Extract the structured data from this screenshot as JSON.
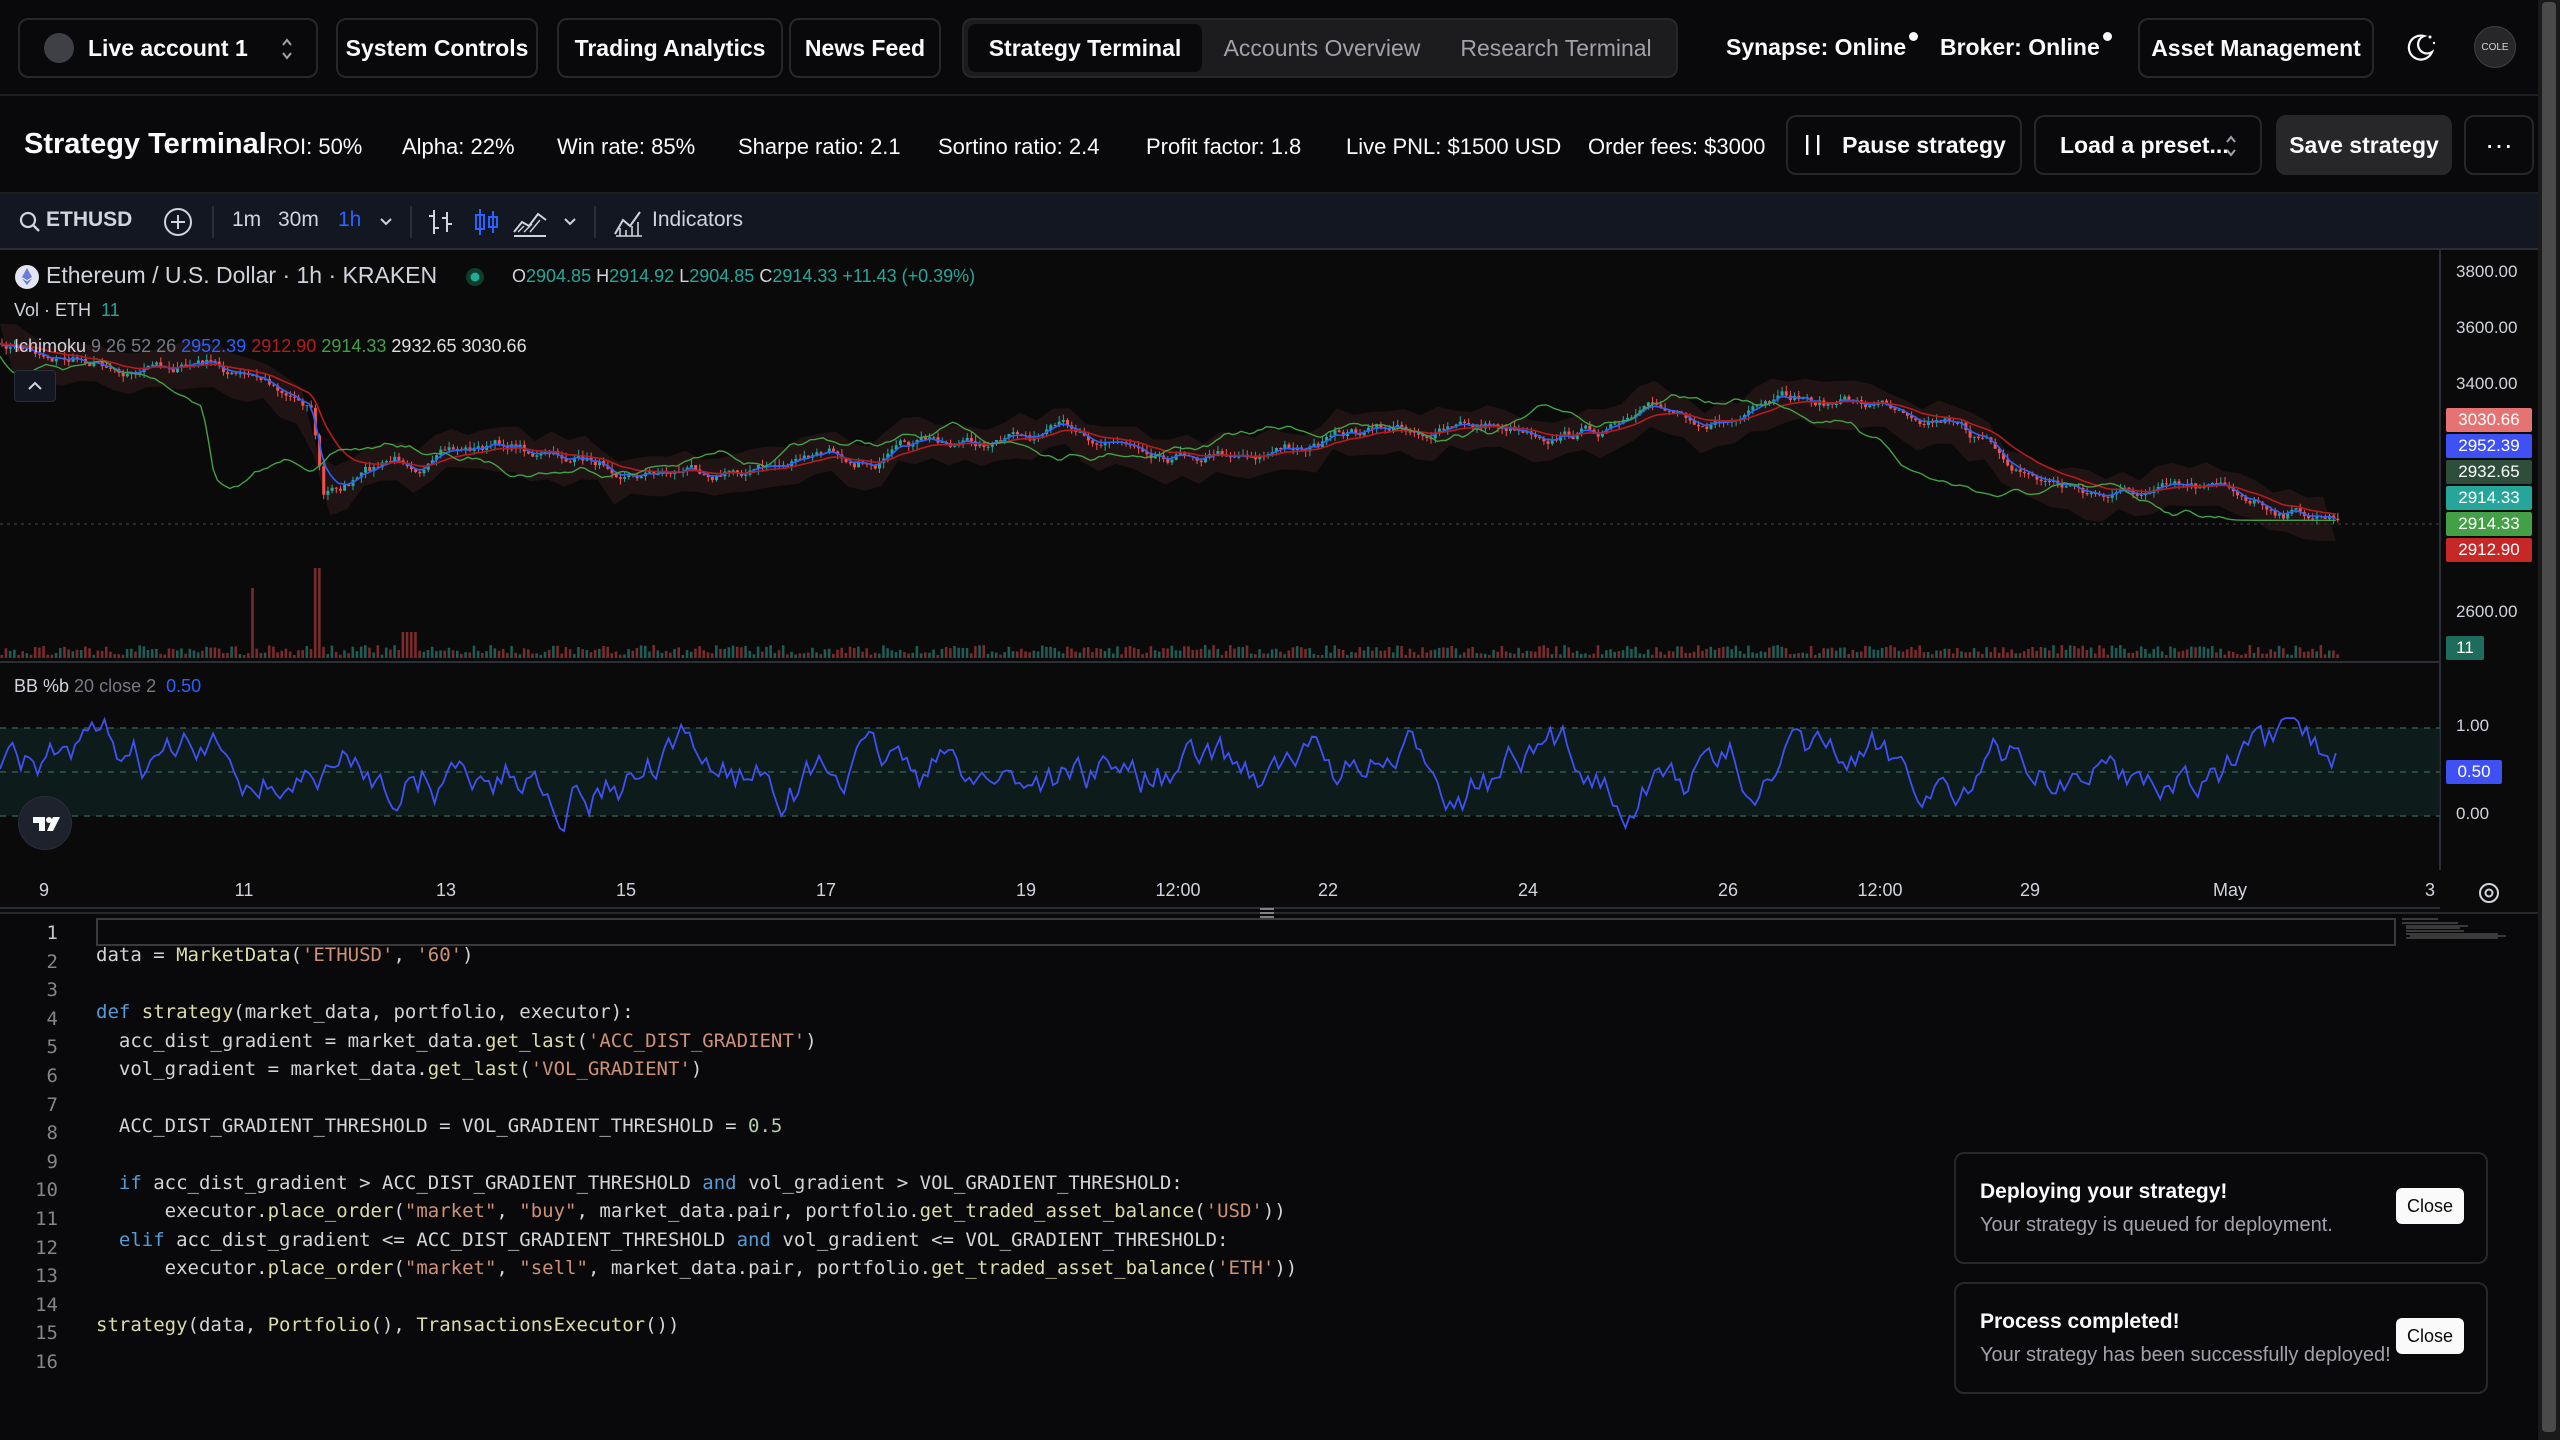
{
  "topnav": {
    "account": "Live account 1",
    "links": [
      "System Controls",
      "Trading Analytics",
      "News Feed"
    ],
    "tabs": [
      "Strategy Terminal",
      "Accounts Overview",
      "Research Terminal"
    ],
    "synapse": "Synapse: Online",
    "broker": "Broker: Online",
    "asset_mgmt": "Asset Management",
    "avatar": "COLE"
  },
  "header": {
    "title": "Strategy Terminal",
    "metrics": [
      "ROI: 50%",
      "Alpha: 22%",
      "Win rate: 85%",
      "Sharpe ratio: 2.1",
      "Sortino ratio: 2.4",
      "Profit factor: 1.8",
      "Live PNL: $1500 USD",
      "Order fees: $3000"
    ],
    "pause": "Pause strategy",
    "preset": "Load a preset...",
    "save": "Save strategy",
    "more": "···"
  },
  "toolbar": {
    "symbol": "ETHUSD",
    "intervals": [
      "1m",
      "30m",
      "1h"
    ],
    "indicators": "Indicators"
  },
  "chart": {
    "title": "Ethereum / U.S. Dollar · 1h · KRAKEN",
    "ohlc": {
      "o_label": "O",
      "o": "2904.85",
      "h_label": "H",
      "h": "2914.92",
      "l_label": "L",
      "l": "2904.85",
      "c_label": "C",
      "c": "2914.33",
      "chg": "+11.43 (+0.39%)"
    },
    "vol_label": "Vol · ETH",
    "vol_value": "11",
    "ichimoku_label": "Ichimoku",
    "ichimoku_params": "9 26 52 26",
    "ichimoku_vals": [
      "2952.39",
      "2912.90",
      "2914.33",
      "2932.65",
      "3030.66"
    ],
    "y_ticks": [
      "3800.00",
      "3600.00",
      "3400.00",
      "2600.00"
    ],
    "price_tags": [
      {
        "label": "3030.66",
        "color": "#e57373"
      },
      {
        "label": "2952.39",
        "color": "#3f51f5"
      },
      {
        "label": "2932.65",
        "color": "#2e4d3a"
      },
      {
        "label": "2914.33",
        "color": "#26a69a"
      },
      {
        "label": "2914.33",
        "color": "#43a047"
      },
      {
        "label": "2912.90",
        "color": "#c62828"
      }
    ],
    "vol_tag": "11",
    "bb_label": "BB %b",
    "bb_params": "20 close 2",
    "bb_value": "0.50",
    "bb_ticks": [
      "1.00",
      "0.00"
    ],
    "bb_tag": "0.50",
    "x_ticks": [
      "9",
      "11",
      "13",
      "15",
      "17",
      "19",
      "12:00",
      "22",
      "24",
      "26",
      "12:00",
      "29",
      "May",
      "3"
    ]
  },
  "editor": {
    "line_numbers": [
      "1",
      "2",
      "3",
      "4",
      "5",
      "6",
      "7",
      "8",
      "9",
      "10",
      "11",
      "12",
      "13",
      "14",
      "15",
      "16"
    ]
  },
  "toasts": [
    {
      "title": "Deploying your strategy!",
      "desc": "Your strategy is queued for deployment.",
      "close": "Close"
    },
    {
      "title": "Process completed!",
      "desc": "Your strategy has been successfully deployed!",
      "close": "Close"
    }
  ]
}
